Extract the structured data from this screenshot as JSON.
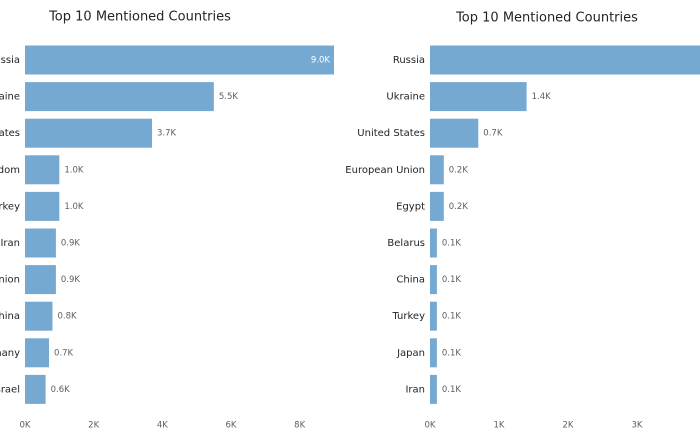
{
  "chart_data": [
    {
      "type": "hbar",
      "title": "Top 10 Mentioned Countries",
      "categories": [
        "ussia",
        "kraine",
        "tates",
        "dom",
        "urkey",
        "Iran",
        "nion",
        "hina",
        "many",
        "srael"
      ],
      "values": [
        9.0,
        5.5,
        3.7,
        1.0,
        1.0,
        0.9,
        0.9,
        0.8,
        0.7,
        0.6
      ],
      "value_labels": [
        "9.0K",
        "5.5K",
        "3.7K",
        "1.0K",
        "1.0K",
        "0.9K",
        "0.9K",
        "0.8K",
        "0.7K",
        "0.6K"
      ],
      "color": "#76a9d1",
      "xlim": [
        0,
        9
      ],
      "xticks": [
        {
          "value": 0,
          "label": "0K"
        },
        {
          "value": 2,
          "label": "2K"
        },
        {
          "value": 4,
          "label": "4K"
        },
        {
          "value": 6,
          "label": "6K"
        },
        {
          "value": 8,
          "label": "8K"
        }
      ]
    },
    {
      "type": "hbar",
      "title": "Top 10 Mentioned Countries",
      "categories": [
        "Russia",
        "Ukraine",
        "United States",
        "European Union",
        "Egypt",
        "Belarus",
        "China",
        "Turkey",
        "Japan",
        "Iran"
      ],
      "values": [
        4.0,
        1.4,
        0.7,
        0.2,
        0.2,
        0.1,
        0.1,
        0.1,
        0.1,
        0.1
      ],
      "value_labels": [
        null,
        "1.4K",
        "0.7K",
        "0.2K",
        "0.2K",
        "0.1K",
        "0.1K",
        "0.1K",
        "0.1K",
        "0.1K"
      ],
      "color": "#76a9d1",
      "xlim": [
        0,
        4
      ],
      "xticks": [
        {
          "value": 0,
          "label": "0K"
        },
        {
          "value": 1,
          "label": "1K"
        },
        {
          "value": 2,
          "label": "2K"
        },
        {
          "value": 3,
          "label": "3K"
        }
      ]
    }
  ]
}
